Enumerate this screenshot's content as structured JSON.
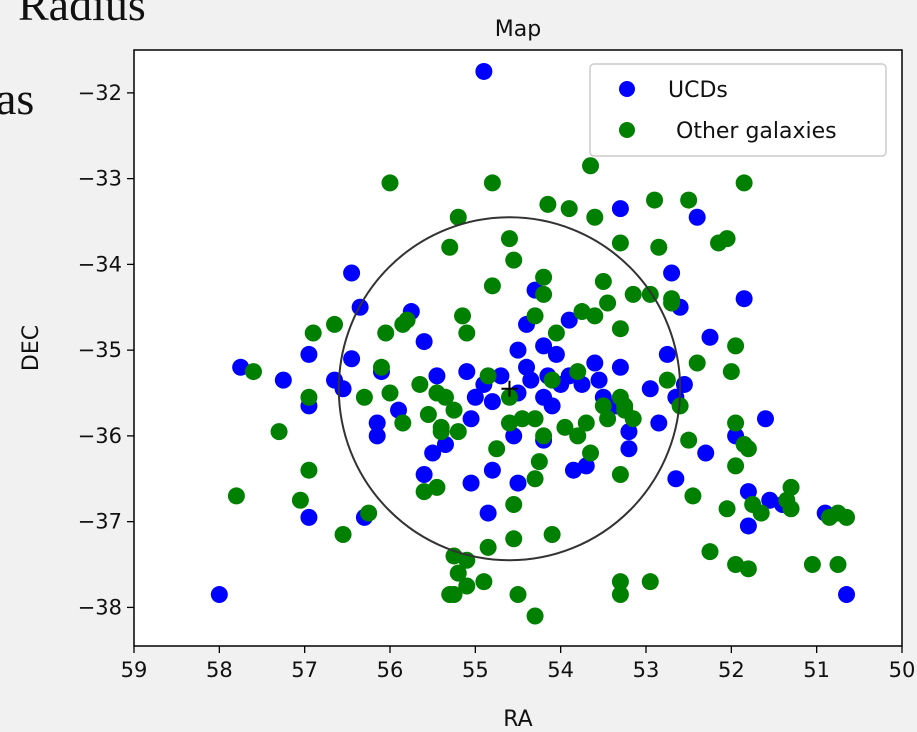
{
  "slide": {
    "partial_title": "Radius",
    "partial_side_text": "as"
  },
  "chart_data": {
    "type": "scatter",
    "title": "Map",
    "xlabel": "RA",
    "ylabel": "DEC",
    "xlim": [
      59,
      50
    ],
    "ylim": [
      -38.45,
      -31.5
    ],
    "x_ticks": [
      59,
      58,
      57,
      56,
      55,
      54,
      53,
      52,
      51,
      50
    ],
    "y_ticks": [
      -32,
      -33,
      -34,
      -35,
      -36,
      -37,
      -38
    ],
    "legend_position": "top-right",
    "circle": {
      "center": [
        54.6,
        -35.45
      ],
      "radius_ra": 2.0,
      "radius_dec": 2.0,
      "color": "#333333"
    },
    "center_marker": {
      "x": 54.6,
      "y": -35.45,
      "symbol": "+"
    },
    "series": [
      {
        "name": "UCDs",
        "color": "#0000ff",
        "points": [
          [
            54.9,
            -31.75
          ],
          [
            53.3,
            -33.35
          ],
          [
            52.4,
            -33.45
          ],
          [
            56.45,
            -34.1
          ],
          [
            56.35,
            -34.5
          ],
          [
            55.75,
            -34.55
          ],
          [
            54.3,
            -34.3
          ],
          [
            52.7,
            -34.1
          ],
          [
            52.6,
            -34.5
          ],
          [
            51.85,
            -34.4
          ],
          [
            53.9,
            -34.65
          ],
          [
            52.25,
            -34.85
          ],
          [
            57.75,
            -35.2
          ],
          [
            57.25,
            -35.35
          ],
          [
            56.95,
            -35.05
          ],
          [
            56.65,
            -35.35
          ],
          [
            56.55,
            -35.45
          ],
          [
            56.45,
            -35.1
          ],
          [
            56.1,
            -35.25
          ],
          [
            55.6,
            -34.9
          ],
          [
            55.45,
            -35.3
          ],
          [
            55.1,
            -35.25
          ],
          [
            55.0,
            -35.55
          ],
          [
            54.9,
            -35.4
          ],
          [
            54.8,
            -35.6
          ],
          [
            54.7,
            -35.3
          ],
          [
            54.5,
            -35.5
          ],
          [
            54.4,
            -35.2
          ],
          [
            54.35,
            -35.35
          ],
          [
            54.2,
            -35.55
          ],
          [
            54.15,
            -35.3
          ],
          [
            54.05,
            -35.05
          ],
          [
            54.0,
            -35.4
          ],
          [
            53.9,
            -35.3
          ],
          [
            53.75,
            -35.4
          ],
          [
            53.6,
            -35.15
          ],
          [
            53.55,
            -35.35
          ],
          [
            53.5,
            -35.55
          ],
          [
            53.3,
            -35.2
          ],
          [
            54.5,
            -35.0
          ],
          [
            54.2,
            -34.95
          ],
          [
            54.4,
            -34.7
          ],
          [
            52.75,
            -35.05
          ],
          [
            52.55,
            -35.4
          ],
          [
            52.95,
            -35.45
          ],
          [
            56.95,
            -35.65
          ],
          [
            56.15,
            -35.85
          ],
          [
            56.15,
            -36.0
          ],
          [
            55.9,
            -35.7
          ],
          [
            55.35,
            -36.1
          ],
          [
            55.05,
            -35.8
          ],
          [
            54.1,
            -35.65
          ],
          [
            53.2,
            -35.95
          ],
          [
            53.2,
            -36.15
          ],
          [
            53.85,
            -36.4
          ],
          [
            53.7,
            -36.35
          ],
          [
            54.8,
            -36.4
          ],
          [
            54.5,
            -36.55
          ],
          [
            55.5,
            -36.2
          ],
          [
            55.6,
            -36.45
          ],
          [
            55.05,
            -36.55
          ],
          [
            54.85,
            -36.9
          ],
          [
            52.85,
            -35.85
          ],
          [
            52.3,
            -36.2
          ],
          [
            52.65,
            -36.5
          ],
          [
            51.95,
            -36.0
          ],
          [
            51.8,
            -36.65
          ],
          [
            51.6,
            -35.8
          ],
          [
            51.55,
            -36.75
          ],
          [
            51.4,
            -36.8
          ],
          [
            51.8,
            -37.05
          ],
          [
            56.95,
            -36.95
          ],
          [
            56.3,
            -36.95
          ],
          [
            58.0,
            -37.85
          ],
          [
            50.9,
            -36.9
          ],
          [
            50.65,
            -37.85
          ],
          [
            54.2,
            -36.05
          ],
          [
            54.55,
            -36.0
          ],
          [
            53.35,
            -35.65
          ],
          [
            52.65,
            -35.55
          ]
        ]
      },
      {
        "name": "Other galaxies",
        "color": "#008000",
        "points": [
          [
            56.0,
            -33.05
          ],
          [
            54.8,
            -33.05
          ],
          [
            53.65,
            -32.85
          ],
          [
            51.85,
            -33.05
          ],
          [
            55.2,
            -33.45
          ],
          [
            54.15,
            -33.3
          ],
          [
            53.9,
            -33.35
          ],
          [
            53.6,
            -33.45
          ],
          [
            52.9,
            -33.25
          ],
          [
            52.5,
            -33.25
          ],
          [
            55.3,
            -33.8
          ],
          [
            54.6,
            -33.7
          ],
          [
            54.55,
            -33.95
          ],
          [
            53.3,
            -33.75
          ],
          [
            52.85,
            -33.8
          ],
          [
            52.15,
            -33.75
          ],
          [
            52.05,
            -33.7
          ],
          [
            54.8,
            -34.25
          ],
          [
            54.2,
            -34.15
          ],
          [
            54.2,
            -34.35
          ],
          [
            53.5,
            -34.2
          ],
          [
            53.75,
            -34.55
          ],
          [
            53.6,
            -34.6
          ],
          [
            53.45,
            -34.45
          ],
          [
            53.15,
            -34.35
          ],
          [
            52.95,
            -34.35
          ],
          [
            52.7,
            -34.4
          ],
          [
            56.9,
            -34.8
          ],
          [
            56.65,
            -34.7
          ],
          [
            56.05,
            -34.8
          ],
          [
            55.85,
            -34.7
          ],
          [
            55.8,
            -34.65
          ],
          [
            55.15,
            -34.6
          ],
          [
            55.1,
            -34.8
          ],
          [
            54.3,
            -34.6
          ],
          [
            54.05,
            -34.8
          ],
          [
            53.3,
            -34.75
          ],
          [
            52.7,
            -34.45
          ],
          [
            57.6,
            -35.25
          ],
          [
            56.1,
            -35.2
          ],
          [
            55.65,
            -35.4
          ],
          [
            55.45,
            -35.5
          ],
          [
            55.35,
            -35.55
          ],
          [
            55.25,
            -35.7
          ],
          [
            54.85,
            -35.3
          ],
          [
            54.6,
            -35.55
          ],
          [
            54.3,
            -35.8
          ],
          [
            54.1,
            -35.35
          ],
          [
            53.8,
            -35.25
          ],
          [
            53.5,
            -35.65
          ],
          [
            53.3,
            -35.55
          ],
          [
            53.15,
            -35.8
          ],
          [
            53.25,
            -35.65
          ],
          [
            52.4,
            -35.15
          ],
          [
            52.0,
            -35.25
          ],
          [
            51.95,
            -34.95
          ],
          [
            52.75,
            -35.35
          ],
          [
            56.95,
            -35.55
          ],
          [
            56.3,
            -35.55
          ],
          [
            56.0,
            -35.5
          ],
          [
            55.85,
            -35.85
          ],
          [
            55.55,
            -35.75
          ],
          [
            55.4,
            -35.9
          ],
          [
            55.2,
            -35.95
          ],
          [
            55.4,
            -35.95
          ],
          [
            54.6,
            -35.85
          ],
          [
            54.45,
            -35.8
          ],
          [
            54.2,
            -36.0
          ],
          [
            53.95,
            -35.9
          ],
          [
            53.7,
            -35.85
          ],
          [
            53.45,
            -35.8
          ],
          [
            53.25,
            -35.7
          ],
          [
            53.8,
            -36.0
          ],
          [
            53.65,
            -36.2
          ],
          [
            52.6,
            -35.65
          ],
          [
            52.5,
            -36.05
          ],
          [
            51.95,
            -35.85
          ],
          [
            51.85,
            -36.1
          ],
          [
            51.95,
            -36.35
          ],
          [
            51.8,
            -36.15
          ],
          [
            57.3,
            -35.95
          ],
          [
            56.95,
            -36.4
          ],
          [
            57.05,
            -36.75
          ],
          [
            56.25,
            -36.9
          ],
          [
            56.55,
            -37.15
          ],
          [
            57.8,
            -36.7
          ],
          [
            55.45,
            -36.6
          ],
          [
            55.6,
            -36.65
          ],
          [
            54.75,
            -36.15
          ],
          [
            54.25,
            -36.3
          ],
          [
            54.3,
            -36.5
          ],
          [
            53.3,
            -36.45
          ],
          [
            52.45,
            -36.7
          ],
          [
            52.05,
            -36.85
          ],
          [
            51.75,
            -36.8
          ],
          [
            51.65,
            -36.9
          ],
          [
            51.35,
            -36.75
          ],
          [
            51.3,
            -36.6
          ],
          [
            50.85,
            -36.95
          ],
          [
            50.75,
            -36.9
          ],
          [
            50.65,
            -36.95
          ],
          [
            54.55,
            -36.8
          ],
          [
            54.55,
            -37.2
          ],
          [
            54.1,
            -37.15
          ],
          [
            55.25,
            -37.4
          ],
          [
            55.2,
            -37.6
          ],
          [
            55.1,
            -37.45
          ],
          [
            54.85,
            -37.3
          ],
          [
            54.9,
            -37.7
          ],
          [
            55.1,
            -37.75
          ],
          [
            55.25,
            -37.85
          ],
          [
            55.3,
            -37.85
          ],
          [
            54.5,
            -37.85
          ],
          [
            54.3,
            -38.1
          ],
          [
            53.3,
            -37.7
          ],
          [
            53.3,
            -37.85
          ],
          [
            52.95,
            -37.7
          ],
          [
            52.25,
            -37.35
          ],
          [
            51.95,
            -37.5
          ],
          [
            51.8,
            -37.55
          ],
          [
            51.05,
            -37.5
          ],
          [
            50.75,
            -37.5
          ],
          [
            51.3,
            -36.85
          ]
        ]
      }
    ]
  }
}
